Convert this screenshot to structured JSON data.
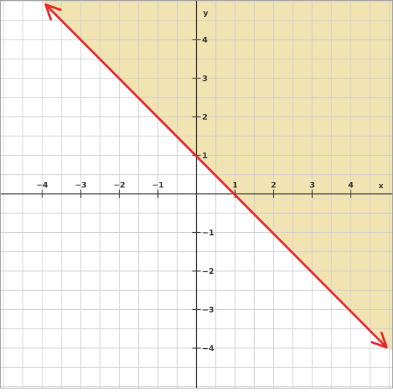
{
  "chart_data": {
    "type": "line",
    "title": "",
    "xlabel": "x",
    "ylabel": "y",
    "xlim": [
      -5,
      5
    ],
    "ylim": [
      -5,
      5
    ],
    "grid": true,
    "grid_step": 0.5,
    "x_ticks": [
      {
        "value": -4,
        "label": "−4"
      },
      {
        "value": -3,
        "label": "−3"
      },
      {
        "value": -2,
        "label": "−2"
      },
      {
        "value": -1,
        "label": "−1"
      },
      {
        "value": 1,
        "label": "1"
      },
      {
        "value": 2,
        "label": "2"
      },
      {
        "value": 3,
        "label": "3"
      },
      {
        "value": 4,
        "label": "4"
      }
    ],
    "y_ticks": [
      {
        "value": 4,
        "label": "4"
      },
      {
        "value": 3,
        "label": "3"
      },
      {
        "value": 2,
        "label": "2"
      },
      {
        "value": 1,
        "label": "1"
      },
      {
        "value": -1,
        "label": "−1"
      },
      {
        "value": -2,
        "label": "−2"
      },
      {
        "value": -3,
        "label": "−3"
      },
      {
        "value": -4,
        "label": "−4"
      }
    ],
    "series": [
      {
        "equation": "y = -x + 1",
        "slope": -1,
        "intercept": 1,
        "x": [
          -4,
          5
        ],
        "y": [
          5,
          -4
        ],
        "style": "solid",
        "arrows": "both"
      }
    ],
    "shaded_region": {
      "inequality": "y >= -x + 1",
      "side": "above"
    },
    "colors": {
      "line": "#e8262b",
      "shade": "#f2e3b3",
      "grid": "#cfcfcf",
      "axis": "#333333",
      "background": "#ffffff"
    }
  }
}
